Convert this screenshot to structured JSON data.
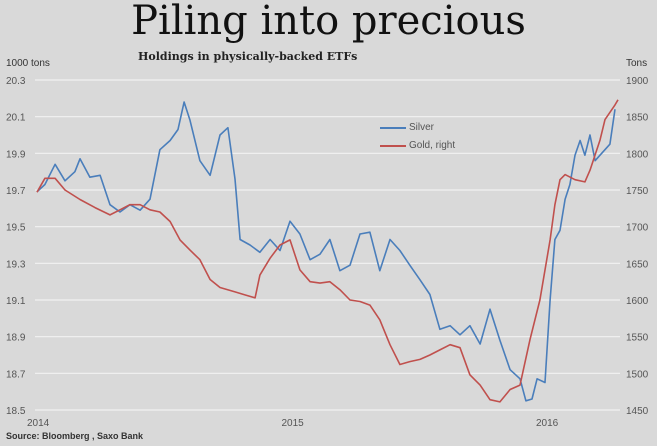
{
  "chart_data": {
    "type": "line",
    "title": "Piling into precious",
    "subtitle": "Holdings in physically-backed ETFs",
    "ylabel_left": "1000 tons",
    "ylabel_right": "Tons",
    "source": "Source: Bloomberg , Saxo Bank",
    "xlim": [
      2014.0,
      2016.3
    ],
    "x_ticks": [
      {
        "value": 2014,
        "label": "2014"
      },
      {
        "value": 2015,
        "label": "2015"
      },
      {
        "value": 2016,
        "label": "2016"
      }
    ],
    "ylim_left": [
      18.5,
      20.3
    ],
    "y_ticks_left": [
      "18.5",
      "18.7",
      "18.9",
      "19.1",
      "19.3",
      "19.5",
      "19.7",
      "19.9",
      "20.1",
      "20.3"
    ],
    "ylim_right": [
      1450,
      1900
    ],
    "y_ticks_right": [
      "1450",
      "1500",
      "1550",
      "1600",
      "1650",
      "1700",
      "1750",
      "1800",
      "1850",
      "1900"
    ],
    "grid": true,
    "legend_position": "right",
    "series": [
      {
        "name": "Silver",
        "axis": "left",
        "color": "#4a7ebb",
        "points": [
          [
            2014.0,
            19.69
          ],
          [
            2014.031,
            19.73
          ],
          [
            2014.071,
            19.84
          ],
          [
            2014.11,
            19.75
          ],
          [
            2014.149,
            19.8
          ],
          [
            2014.169,
            19.87
          ],
          [
            2014.208,
            19.77
          ],
          [
            2014.248,
            19.78
          ],
          [
            2014.287,
            19.62
          ],
          [
            2014.326,
            19.58
          ],
          [
            2014.365,
            19.62
          ],
          [
            2014.405,
            19.59
          ],
          [
            2014.444,
            19.65
          ],
          [
            2014.483,
            19.92
          ],
          [
            2014.523,
            19.97
          ],
          [
            2014.554,
            20.03
          ],
          [
            2014.578,
            20.18
          ],
          [
            2014.601,
            20.08
          ],
          [
            2014.64,
            19.86
          ],
          [
            2014.68,
            19.78
          ],
          [
            2014.719,
            20.0
          ],
          [
            2014.75,
            20.04
          ],
          [
            2014.778,
            19.76
          ],
          [
            2014.798,
            19.43
          ],
          [
            2014.837,
            19.4
          ],
          [
            2014.876,
            19.36
          ],
          [
            2014.916,
            19.43
          ],
          [
            2014.955,
            19.37
          ],
          [
            2014.994,
            19.53
          ],
          [
            2015.033,
            19.46
          ],
          [
            2015.073,
            19.32
          ],
          [
            2015.112,
            19.35
          ],
          [
            2015.151,
            19.43
          ],
          [
            2015.19,
            19.26
          ],
          [
            2015.23,
            19.29
          ],
          [
            2015.269,
            19.46
          ],
          [
            2015.308,
            19.47
          ],
          [
            2015.347,
            19.26
          ],
          [
            2015.387,
            19.43
          ],
          [
            2015.426,
            19.37
          ],
          [
            2015.465,
            19.29
          ],
          [
            2015.505,
            19.21
          ],
          [
            2015.544,
            19.13
          ],
          [
            2015.583,
            18.94
          ],
          [
            2015.623,
            18.96
          ],
          [
            2015.662,
            18.91
          ],
          [
            2015.701,
            18.96
          ],
          [
            2015.741,
            18.86
          ],
          [
            2015.78,
            19.05
          ],
          [
            2015.819,
            18.88
          ],
          [
            2015.859,
            18.72
          ],
          [
            2015.898,
            18.67
          ],
          [
            2015.921,
            18.55
          ],
          [
            2015.945,
            18.56
          ],
          [
            2015.965,
            18.67
          ],
          [
            2015.996,
            18.65
          ],
          [
            2016.016,
            19.1
          ],
          [
            2016.035,
            19.43
          ],
          [
            2016.055,
            19.48
          ],
          [
            2016.075,
            19.65
          ],
          [
            2016.094,
            19.73
          ],
          [
            2016.114,
            19.89
          ],
          [
            2016.134,
            19.97
          ],
          [
            2016.153,
            19.89
          ],
          [
            2016.173,
            20.0
          ],
          [
            2016.193,
            19.86
          ],
          [
            2016.212,
            19.89
          ],
          [
            2016.251,
            19.95
          ],
          [
            2016.271,
            20.14
          ]
        ]
      },
      {
        "name": "Gold, right",
        "axis": "right",
        "color": "#c0504d",
        "points": [
          [
            2014.0,
            1747
          ],
          [
            2014.031,
            1766
          ],
          [
            2014.071,
            1766
          ],
          [
            2014.11,
            1750
          ],
          [
            2014.169,
            1737
          ],
          [
            2014.228,
            1726
          ],
          [
            2014.287,
            1716
          ],
          [
            2014.326,
            1723
          ],
          [
            2014.365,
            1730
          ],
          [
            2014.405,
            1730
          ],
          [
            2014.444,
            1723
          ],
          [
            2014.483,
            1720
          ],
          [
            2014.523,
            1707
          ],
          [
            2014.562,
            1682
          ],
          [
            2014.601,
            1668
          ],
          [
            2014.64,
            1655
          ],
          [
            2014.68,
            1628
          ],
          [
            2014.719,
            1617
          ],
          [
            2014.778,
            1611
          ],
          [
            2014.817,
            1607
          ],
          [
            2014.857,
            1603
          ],
          [
            2014.876,
            1634
          ],
          [
            2014.916,
            1657
          ],
          [
            2014.955,
            1675
          ],
          [
            2014.994,
            1682
          ],
          [
            2015.033,
            1641
          ],
          [
            2015.073,
            1625
          ],
          [
            2015.112,
            1623
          ],
          [
            2015.151,
            1625
          ],
          [
            2015.19,
            1614
          ],
          [
            2015.23,
            1600
          ],
          [
            2015.269,
            1598
          ],
          [
            2015.308,
            1593
          ],
          [
            2015.347,
            1573
          ],
          [
            2015.387,
            1539
          ],
          [
            2015.426,
            1512
          ],
          [
            2015.465,
            1516
          ],
          [
            2015.505,
            1519
          ],
          [
            2015.544,
            1525
          ],
          [
            2015.583,
            1532
          ],
          [
            2015.623,
            1539
          ],
          [
            2015.662,
            1535
          ],
          [
            2015.701,
            1498
          ],
          [
            2015.741,
            1484
          ],
          [
            2015.78,
            1464
          ],
          [
            2015.819,
            1461
          ],
          [
            2015.859,
            1478
          ],
          [
            2015.898,
            1484
          ],
          [
            2015.937,
            1546
          ],
          [
            2015.976,
            1600
          ],
          [
            2016.016,
            1682
          ],
          [
            2016.035,
            1730
          ],
          [
            2016.055,
            1764
          ],
          [
            2016.075,
            1771
          ],
          [
            2016.114,
            1764
          ],
          [
            2016.153,
            1761
          ],
          [
            2016.173,
            1777
          ],
          [
            2016.212,
            1818
          ],
          [
            2016.232,
            1846
          ],
          [
            2016.271,
            1866
          ],
          [
            2016.283,
            1873
          ]
        ]
      }
    ]
  }
}
